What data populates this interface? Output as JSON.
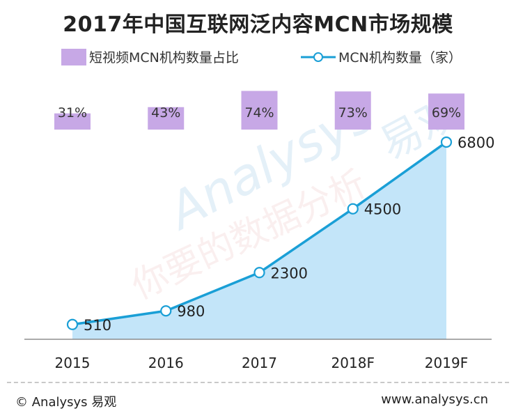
{
  "chart_data": {
    "type": "line",
    "title": "2017年中国互联网泛内容MCN市场规模",
    "categories": [
      "2015",
      "2016",
      "2017",
      "2018F",
      "2019F"
    ],
    "series": [
      {
        "name": "MCN机构数量（家）",
        "kind": "line",
        "values": [
          510,
          980,
          2300,
          4500,
          6800
        ],
        "labels": [
          "510",
          "980",
          "2300",
          "4500",
          "6800"
        ]
      },
      {
        "name": "短视频MCN机构数量占比",
        "kind": "percent-box",
        "values": [
          31,
          43,
          74,
          73,
          69
        ],
        "labels": [
          "31%",
          "43%",
          "74%",
          "73%",
          "69%"
        ]
      }
    ],
    "ylim": [
      0,
      7000
    ],
    "legend": "top",
    "grid": false
  },
  "colors": {
    "line": "#1a9fd6",
    "area": "#b9e0f8",
    "bar": "#c7a8e6"
  },
  "watermark": {
    "text": "你要的数据分析",
    "brand": "易观"
  },
  "footer": {
    "left": "© Analysys 易观",
    "right": "www.analysys.cn"
  }
}
